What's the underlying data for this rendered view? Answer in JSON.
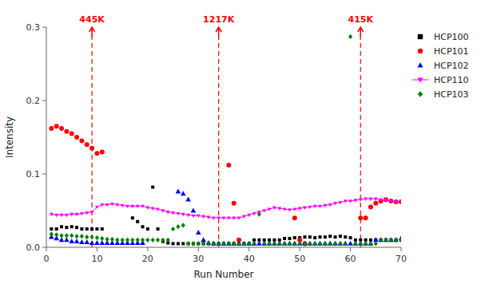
{
  "chart_data": {
    "type": "scatter",
    "xlabel": "Run Number",
    "ylabel": "Intensity",
    "xlim": [
      0,
      70
    ],
    "ylim": [
      0,
      0.3
    ],
    "xticks": [
      0,
      10,
      20,
      30,
      40,
      50,
      60,
      70
    ],
    "yticks": [
      {
        "value": 0.0,
        "label": "0.0"
      },
      0.1,
      0.2,
      0.3
    ],
    "grid": false,
    "legend": "upper right",
    "annotations": [
      {
        "x": 9,
        "text": "445K",
        "color": "#ff0000",
        "line_style": "dashed"
      },
      {
        "x": 34,
        "text": "1217K",
        "color": "#ff0000",
        "line_style": "dashed"
      },
      {
        "x": 62,
        "text": "415K",
        "color": "#ff0000",
        "line_style": "dashed"
      }
    ],
    "series": [
      {
        "name": "HCP100",
        "type": "scatter",
        "color": "#000000",
        "marker": "square",
        "x": [
          1,
          2,
          3,
          4,
          5,
          6,
          7,
          8,
          9,
          10,
          11,
          17,
          18,
          19,
          20,
          21,
          22,
          23,
          24,
          25,
          26,
          27,
          28,
          29,
          30,
          31,
          32,
          33,
          34,
          35,
          36,
          37,
          38,
          39,
          40,
          41,
          42,
          43,
          44,
          45,
          46,
          47,
          48,
          49,
          50,
          51,
          52,
          53,
          54,
          55,
          56,
          57,
          58,
          59,
          60,
          61,
          62,
          63,
          64,
          65,
          66,
          67,
          68,
          69,
          70
        ],
        "values": [
          0.025,
          0.025,
          0.028,
          0.027,
          0.028,
          0.027,
          0.025,
          0.025,
          0.025,
          0.025,
          0.025,
          0.04,
          0.035,
          0.028,
          0.025,
          0.082,
          0.025,
          0.008,
          0.006,
          0.005,
          0.005,
          0.005,
          0.005,
          0.005,
          0.005,
          0.005,
          0.005,
          0.005,
          0.005,
          0.005,
          0.005,
          0.005,
          0.005,
          0.005,
          0.005,
          0.01,
          0.01,
          0.01,
          0.01,
          0.01,
          0.01,
          0.012,
          0.012,
          0.013,
          0.013,
          0.014,
          0.014,
          0.013,
          0.014,
          0.014,
          0.015,
          0.014,
          0.015,
          0.014,
          0.013,
          0.01,
          0.01,
          0.01,
          0.01,
          0.01,
          0.01,
          0.01,
          0.01,
          0.01,
          0.01
        ]
      },
      {
        "name": "HCP101",
        "type": "scatter",
        "color": "#ff0000",
        "marker": "circle",
        "x": [
          1,
          2,
          3,
          4,
          5,
          6,
          7,
          8,
          9,
          10,
          11,
          36,
          37,
          38,
          49,
          50,
          51,
          62,
          63,
          64,
          65,
          66,
          67,
          68,
          69,
          70
        ],
        "values": [
          0.162,
          0.165,
          0.162,
          0.158,
          0.155,
          0.15,
          0.145,
          0.14,
          0.135,
          0.128,
          0.13,
          0.112,
          0.06,
          0.01,
          0.04,
          0.01,
          0.005,
          0.04,
          0.04,
          0.055,
          0.06,
          0.063,
          0.065,
          0.063,
          0.062,
          0.062
        ]
      },
      {
        "name": "HCP102",
        "type": "scatter",
        "color": "#0000ff",
        "marker": "triangle-up",
        "x": [
          1,
          2,
          3,
          4,
          5,
          6,
          7,
          8,
          9,
          10,
          11,
          12,
          13,
          14,
          15,
          16,
          17,
          18,
          19,
          26,
          27,
          28,
          29,
          30,
          31,
          32,
          33,
          34,
          35,
          36,
          37,
          38,
          39,
          40,
          41,
          42,
          43,
          44,
          45,
          46,
          47,
          48,
          49,
          50,
          51,
          52,
          53,
          54,
          55,
          56,
          57,
          58,
          59,
          60,
          61,
          62,
          63,
          64,
          65,
          66,
          67,
          68,
          69,
          70
        ],
        "values": [
          0.014,
          0.012,
          0.01,
          0.01,
          0.008,
          0.008,
          0.007,
          0.007,
          0.006,
          0.006,
          0.006,
          0.006,
          0.006,
          0.006,
          0.006,
          0.006,
          0.006,
          0.006,
          0.006,
          0.076,
          0.073,
          0.065,
          0.05,
          0.02,
          0.01,
          0.006,
          0.005,
          0.005,
          0.005,
          0.005,
          0.005,
          0.005,
          0.005,
          0.005,
          0.005,
          0.005,
          0.005,
          0.005,
          0.005,
          0.005,
          0.005,
          0.005,
          0.005,
          0.005,
          0.005,
          0.005,
          0.005,
          0.005,
          0.005,
          0.005,
          0.005,
          0.005,
          0.005,
          0.005,
          0.005,
          0.005,
          0.005,
          0.005,
          0.01,
          0.01,
          0.01,
          0.01,
          0.01,
          0.012
        ]
      },
      {
        "name": "HCP110",
        "type": "line",
        "color": "#ff00ff",
        "marker": "triangle-down",
        "line_style": "solid",
        "x": [
          1,
          2,
          3,
          4,
          5,
          6,
          7,
          8,
          9,
          10,
          11,
          12,
          13,
          14,
          15,
          16,
          17,
          18,
          19,
          20,
          21,
          22,
          23,
          24,
          25,
          26,
          27,
          28,
          29,
          30,
          31,
          32,
          33,
          34,
          35,
          36,
          37,
          38,
          39,
          40,
          41,
          42,
          43,
          44,
          45,
          46,
          47,
          48,
          49,
          50,
          51,
          52,
          53,
          54,
          55,
          56,
          57,
          58,
          59,
          60,
          61,
          62,
          63,
          64,
          65,
          66,
          67,
          68,
          69,
          70
        ],
        "values": [
          0.045,
          0.044,
          0.044,
          0.044,
          0.045,
          0.045,
          0.046,
          0.047,
          0.048,
          0.055,
          0.058,
          0.058,
          0.059,
          0.058,
          0.057,
          0.056,
          0.056,
          0.056,
          0.056,
          0.054,
          0.053,
          0.052,
          0.05,
          0.048,
          0.047,
          0.046,
          0.045,
          0.044,
          0.043,
          0.043,
          0.042,
          0.041,
          0.04,
          0.04,
          0.04,
          0.04,
          0.04,
          0.04,
          0.042,
          0.044,
          0.046,
          0.048,
          0.05,
          0.052,
          0.054,
          0.053,
          0.052,
          0.051,
          0.052,
          0.053,
          0.054,
          0.055,
          0.056,
          0.056,
          0.057,
          0.058,
          0.06,
          0.061,
          0.063,
          0.063,
          0.064,
          0.065,
          0.066,
          0.066,
          0.066,
          0.065,
          0.064,
          0.063,
          0.062,
          0.062
        ]
      },
      {
        "name": "HCP103",
        "type": "scatter",
        "color": "#008000",
        "marker": "diamond",
        "x": [
          1,
          2,
          3,
          4,
          5,
          6,
          7,
          8,
          9,
          10,
          11,
          12,
          13,
          14,
          15,
          16,
          17,
          18,
          19,
          20,
          21,
          22,
          23,
          24,
          25,
          26,
          27,
          28,
          29,
          30,
          31,
          32,
          33,
          34,
          35,
          36,
          37,
          38,
          39,
          40,
          41,
          42,
          43,
          44,
          45,
          46,
          47,
          48,
          49,
          50,
          51,
          52,
          53,
          54,
          55,
          56,
          57,
          58,
          59,
          60,
          61,
          62,
          63,
          64,
          65,
          66,
          67,
          68,
          69,
          70
        ],
        "values": [
          0.018,
          0.017,
          0.016,
          0.016,
          0.016,
          0.015,
          0.015,
          0.014,
          0.014,
          0.013,
          0.012,
          0.011,
          0.011,
          0.01,
          0.01,
          0.01,
          0.01,
          0.01,
          0.01,
          0.01,
          0.01,
          0.01,
          0.01,
          0.01,
          0.025,
          0.028,
          0.03,
          0.005,
          0.005,
          0.005,
          0.005,
          0.005,
          0.005,
          0.005,
          0.005,
          0.005,
          0.005,
          0.005,
          0.005,
          0.005,
          0.005,
          0.045,
          0.005,
          0.005,
          0.005,
          0.005,
          0.005,
          0.005,
          0.005,
          0.005,
          0.005,
          0.005,
          0.005,
          0.005,
          0.005,
          0.005,
          0.005,
          0.005,
          0.005,
          0.287,
          0.005,
          0.005,
          0.005,
          0.005,
          0.005,
          0.01,
          0.01,
          0.01,
          0.01,
          0.01
        ]
      }
    ]
  }
}
